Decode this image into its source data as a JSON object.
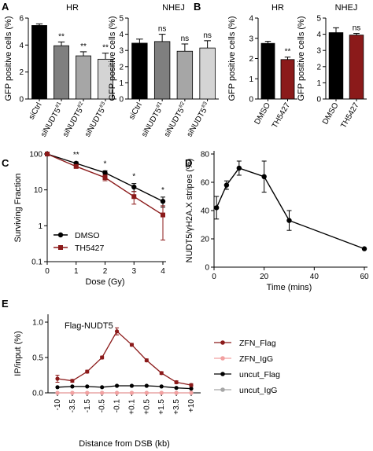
{
  "panels": [
    {
      "id": "A",
      "letter": "A"
    },
    {
      "id": "B",
      "letter": "B"
    },
    {
      "id": "C",
      "letter": "C"
    },
    {
      "id": "D",
      "letter": "D"
    },
    {
      "id": "E",
      "letter": "E"
    }
  ],
  "chart_data": [
    {
      "panel": "A",
      "type": "bar",
      "title": "HR",
      "ylabel": "GFP positive cells (%)",
      "ylim": [
        0,
        6
      ],
      "yticks": [
        0,
        2,
        4,
        6
      ],
      "categories": [
        "siCtrl",
        "siNUDT5#1",
        "siNUDT5#2",
        "siNUDT5#3"
      ],
      "values": [
        5.45,
        3.95,
        3.2,
        2.95
      ],
      "errors": [
        0.12,
        0.28,
        0.3,
        0.45
      ],
      "colors": [
        "#000000",
        "#7f7f7f",
        "#a6a6a6",
        "#d4d4d4"
      ],
      "annotations": [
        "",
        "**",
        "**",
        "**"
      ]
    },
    {
      "panel": "A",
      "type": "bar",
      "title": "NHEJ",
      "ylabel": "GFP positive cells (%)",
      "ylim": [
        0,
        5
      ],
      "yticks": [
        0,
        1,
        2,
        3,
        4,
        5
      ],
      "categories": [
        "siCtrl",
        "siNUDT5#1",
        "siNUDT5#2",
        "siNUDT5#3"
      ],
      "values": [
        3.45,
        3.55,
        2.95,
        3.15
      ],
      "errors": [
        0.25,
        0.45,
        0.45,
        0.45
      ],
      "colors": [
        "#000000",
        "#7f7f7f",
        "#a6a6a6",
        "#d4d4d4"
      ],
      "annotations": [
        "",
        "ns",
        "ns",
        "ns"
      ]
    },
    {
      "panel": "B",
      "type": "bar",
      "title": "HR",
      "ylabel": "GFP positive cells (%)",
      "ylim": [
        0,
        4
      ],
      "yticks": [
        0,
        1,
        2,
        3,
        4
      ],
      "categories": [
        "DMSO",
        "TH5427"
      ],
      "values": [
        2.75,
        1.95
      ],
      "errors": [
        0.1,
        0.12
      ],
      "colors": [
        "#000000",
        "#8b1a1a"
      ],
      "annotations": [
        "",
        "**"
      ]
    },
    {
      "panel": "B",
      "type": "bar",
      "title": "NHEJ",
      "ylabel": "GFP positive cells (%)",
      "ylim": [
        0,
        5
      ],
      "yticks": [
        0,
        1,
        2,
        3,
        4,
        5
      ],
      "categories": [
        "DMSO",
        "TH5427"
      ],
      "values": [
        4.1,
        3.95
      ],
      "errors": [
        0.3,
        0.1
      ],
      "colors": [
        "#000000",
        "#8b1a1a"
      ],
      "annotations": [
        "",
        "ns"
      ]
    },
    {
      "panel": "C",
      "type": "line",
      "xlabel": "Dose (Gy)",
      "ylabel": "Surviving Fraction",
      "xlim": [
        0,
        4
      ],
      "xticks": [
        0,
        1,
        2,
        3,
        4
      ],
      "ylim": [
        0.1,
        100
      ],
      "yscale": "log",
      "yticks": [
        0.1,
        1,
        10,
        100
      ],
      "ytick_labels": [
        "0.1",
        "1",
        "10",
        "100"
      ],
      "x": [
        0,
        1,
        2,
        3,
        4
      ],
      "series": [
        {
          "name": "DMSO",
          "color": "#000000",
          "marker": "circle",
          "values": [
            100,
            55,
            30,
            12,
            4.8
          ],
          "errors": [
            3,
            5,
            4,
            3,
            1.5
          ]
        },
        {
          "name": "TH5427",
          "color": "#8b1a1a",
          "marker": "square",
          "values": [
            100,
            45,
            22,
            6.5,
            2.0
          ],
          "errors": [
            3,
            4,
            4,
            2.5,
            1.6
          ]
        }
      ],
      "annotations": [
        {
          "x": 1,
          "text": "**"
        },
        {
          "x": 2,
          "text": "*"
        },
        {
          "x": 3,
          "text": "*"
        },
        {
          "x": 4,
          "text": "*"
        }
      ],
      "legend": "bottom-left"
    },
    {
      "panel": "D",
      "type": "line",
      "xlabel": "Time (mins)",
      "ylabel": "NUDT5/γH2A.X stripes (%)",
      "xlim": [
        0,
        60
      ],
      "xticks": [
        0,
        20,
        40,
        60
      ],
      "ylim": [
        0,
        80
      ],
      "yticks": [
        0,
        20,
        40,
        60,
        80
      ],
      "series": [
        {
          "color": "#000000",
          "marker": "circle",
          "x": [
            1,
            5,
            10,
            20,
            30,
            60
          ],
          "values": [
            42,
            58,
            70,
            64,
            33,
            13
          ],
          "errors": [
            8,
            3,
            5,
            11,
            7,
            0
          ]
        }
      ]
    },
    {
      "panel": "E",
      "type": "line",
      "title": "Flag-NUDT5",
      "xlabel": "Distance from DSB (kb)",
      "ylabel": "IP/input (%)",
      "ylim": [
        0,
        1.0
      ],
      "yticks": [
        0.0,
        0.5,
        1.0
      ],
      "ytick_labels": [
        "0.0",
        "0.5",
        "1.0"
      ],
      "categories": [
        "-10",
        "-3.5",
        "-1.5",
        "-0.5",
        "-0.1",
        "+0.1",
        "+0.5",
        "+1.5",
        "+3.5",
        "+10"
      ],
      "series": [
        {
          "name": "ZFN_Flag",
          "color": "#8b1a1a",
          "marker": "circle",
          "values": [
            0.2,
            0.17,
            0.3,
            0.5,
            0.87,
            0.68,
            0.46,
            0.28,
            0.15,
            0.11
          ],
          "errors": [
            0.05,
            0.02,
            0.02,
            0.02,
            0.05,
            0.02,
            0.02,
            0.02,
            0.02,
            0.02
          ]
        },
        {
          "name": "ZFN_IgG",
          "color": "#f2a0a0",
          "marker": "circle",
          "values": [
            0,
            0,
            0,
            0,
            0,
            0,
            0,
            0,
            0,
            0
          ],
          "errors": []
        },
        {
          "name": "uncut_Flag",
          "color": "#000000",
          "marker": "circle",
          "values": [
            0.08,
            0.09,
            0.09,
            0.08,
            0.1,
            0.1,
            0.1,
            0.09,
            0.07,
            0.06
          ],
          "errors": []
        },
        {
          "name": "uncut_IgG",
          "color": "#a6a6a6",
          "marker": "circle",
          "values": [
            0,
            0,
            0,
            0,
            0,
            0,
            0,
            0,
            0,
            0
          ],
          "errors": []
        }
      ],
      "legend": "right"
    }
  ]
}
